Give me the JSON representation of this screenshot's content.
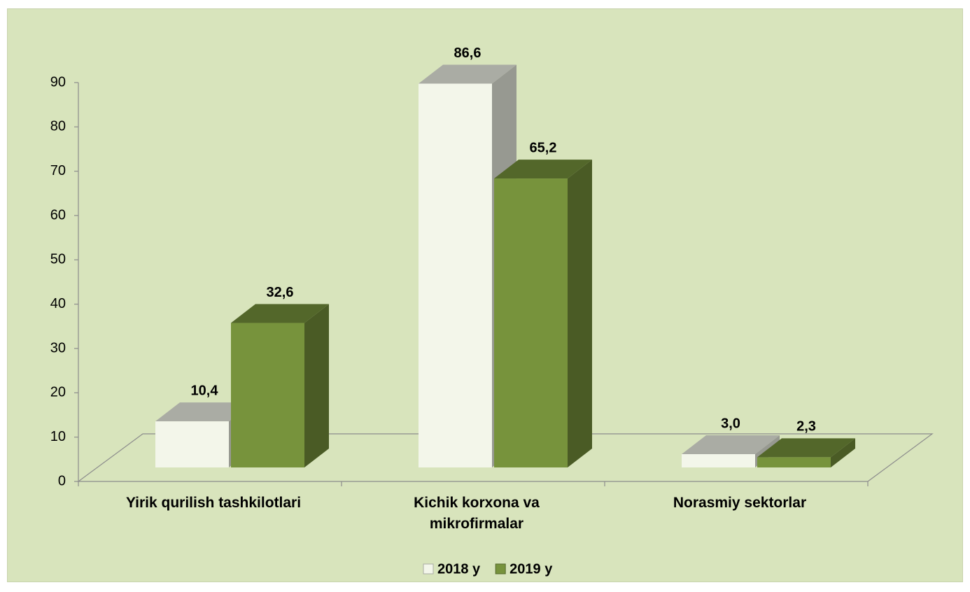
{
  "chart_data": {
    "type": "bar3d",
    "categories": [
      "Yirik qurilish tashkilotlari",
      "Kichik korxona va mikrofirmalar",
      "Norasmiy sektorlar"
    ],
    "series": [
      {
        "name": "2018 y",
        "color": "#f3f6ea",
        "values": [
          10.4,
          86.6,
          3.0
        ],
        "value_labels": [
          "10,4",
          "86,6",
          "3,0"
        ]
      },
      {
        "name": "2019 y",
        "color": "#77933c",
        "values": [
          32.6,
          65.2,
          2.3
        ],
        "value_labels": [
          "32,6",
          "65,2",
          "2,3"
        ]
      }
    ],
    "ylim": [
      0,
      90
    ],
    "yticks": [
      0,
      10,
      20,
      30,
      40,
      50,
      60,
      70,
      80,
      90
    ],
    "legend": "bottom"
  }
}
